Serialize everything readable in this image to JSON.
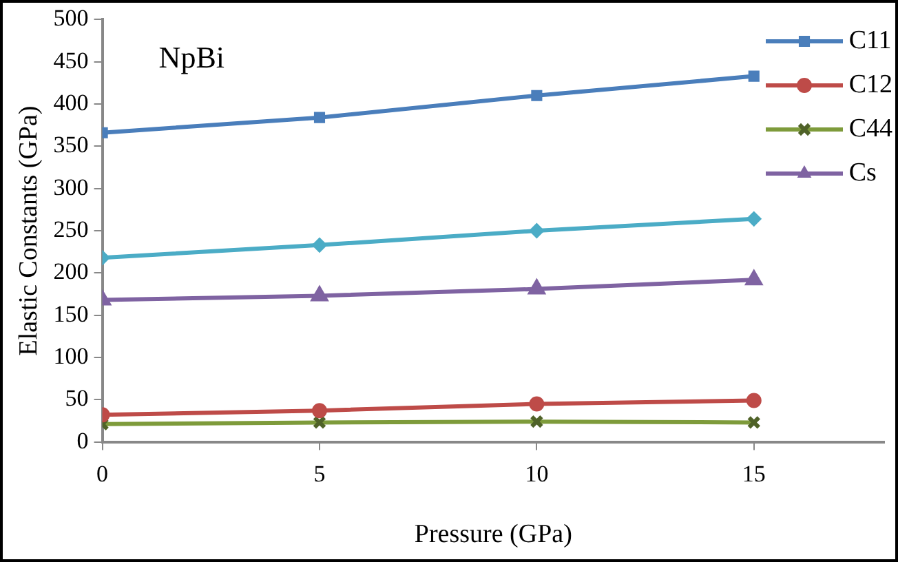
{
  "chart_data": {
    "type": "line",
    "xlabel": "Pressure (GPa)",
    "ylabel": "Elastic Constants (GPa)",
    "annotations": [
      "NpBi"
    ],
    "x": [
      0,
      5,
      10,
      15
    ],
    "xlim": [
      0,
      18
    ],
    "xticks": [
      0,
      5,
      10,
      15
    ],
    "ylim": [
      0,
      500
    ],
    "yticks": [
      0,
      50,
      100,
      150,
      200,
      250,
      300,
      350,
      400,
      450,
      500
    ],
    "grid": false,
    "legend": "top right",
    "series": [
      {
        "name": "C11",
        "color": "#4a7ebb",
        "marker": "square",
        "values": [
          366,
          384,
          410,
          433
        ]
      },
      {
        "name": "C12",
        "color": "#be4b48",
        "marker": "circle",
        "values": [
          32,
          37,
          45,
          49
        ]
      },
      {
        "name": "C44",
        "color": "#7e9b3b",
        "marker": "cross",
        "values": [
          21,
          23,
          24,
          23
        ]
      },
      {
        "color": "#4bacc6",
        "marker": "diamond",
        "values": [
          218,
          233,
          250,
          264
        ]
      },
      {
        "name": "Cs",
        "color": "#7f63a2",
        "marker": "triangle",
        "values": [
          168,
          173,
          181,
          192
        ]
      }
    ]
  }
}
